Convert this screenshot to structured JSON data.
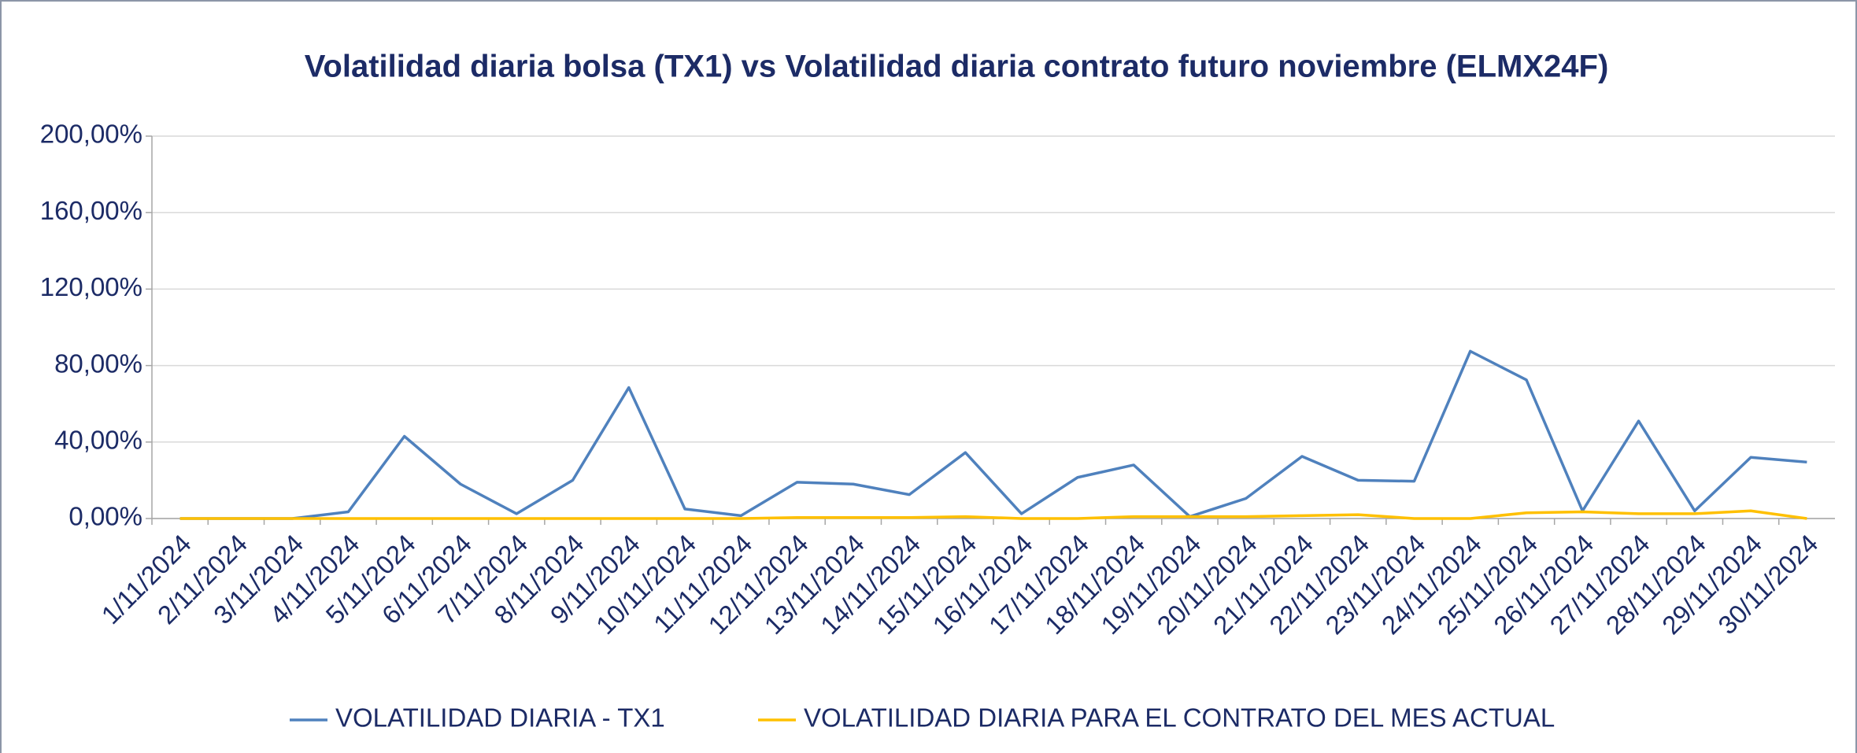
{
  "chart_data": {
    "type": "line",
    "title": "Volatilidad diaria bolsa (TX1) vs Volatilidad diaria contrato futuro noviembre (ELMX24F)",
    "categories": [
      "1/11/2024",
      "2/11/2024",
      "3/11/2024",
      "4/11/2024",
      "5/11/2024",
      "6/11/2024",
      "7/11/2024",
      "8/11/2024",
      "9/11/2024",
      "10/11/2024",
      "11/11/2024",
      "12/11/2024",
      "13/11/2024",
      "14/11/2024",
      "15/11/2024",
      "16/11/2024",
      "17/11/2024",
      "18/11/2024",
      "19/11/2024",
      "20/11/2024",
      "21/11/2024",
      "22/11/2024",
      "23/11/2024",
      "24/11/2024",
      "25/11/2024",
      "26/11/2024",
      "27/11/2024",
      "28/11/2024",
      "29/11/2024",
      "30/11/2024"
    ],
    "series": [
      {
        "name": "VOLATILIDAD DIARIA - TX1",
        "color": "#4f81bd",
        "values": [
          0,
          0,
          0,
          3.5,
          43,
          18,
          2.5,
          20,
          68.5,
          5,
          1.5,
          19,
          18,
          12.5,
          34.5,
          2.5,
          21.5,
          28,
          1,
          10.5,
          32.5,
          20,
          19.5,
          87.5,
          72.5,
          4,
          51,
          4,
          32,
          29.5
        ]
      },
      {
        "name": "VOLATILIDAD DIARIA PARA EL CONTRATO DEL MES ACTUAL",
        "color": "#ffc000",
        "values": [
          0,
          0,
          0,
          0,
          0,
          0,
          0,
          0,
          0,
          0,
          0,
          0.5,
          0.5,
          0.5,
          1,
          0,
          0,
          1,
          1,
          1,
          1.5,
          2,
          0,
          0,
          3,
          3.5,
          2.5,
          2.5,
          4,
          0
        ]
      }
    ],
    "ylim": [
      0,
      200
    ],
    "yticks": [
      {
        "value": 0,
        "label": "0,00%"
      },
      {
        "value": 40,
        "label": "40,00%"
      },
      {
        "value": 80,
        "label": "80,00%"
      },
      {
        "value": 120,
        "label": "120,00%"
      },
      {
        "value": 160,
        "label": "160,00%"
      },
      {
        "value": 200,
        "label": "200,00%"
      }
    ],
    "grid": true,
    "legend": "bottom"
  }
}
